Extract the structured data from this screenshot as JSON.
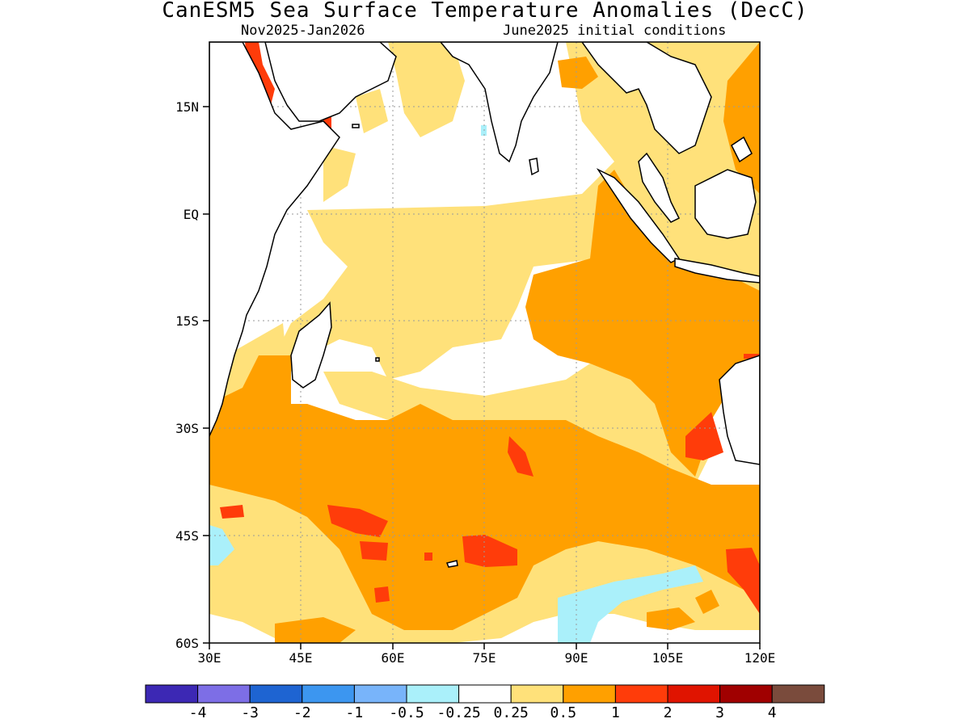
{
  "title": "CanESM5 Sea Surface Temperature Anomalies (DecC)",
  "subtitle_left": "Nov2025-Jan2026",
  "subtitle_right": "June2025 initial conditions",
  "lat_ticks": [
    "15N",
    "EQ",
    "15S",
    "30S",
    "45S",
    "60S"
  ],
  "lon_ticks": [
    "30E",
    "45E",
    "60E",
    "75E",
    "90E",
    "105E",
    "120E"
  ],
  "colors": {
    "ocean_neutral": "#ffffff",
    "pos_025_05": "#ffe17a",
    "pos_05_1": "#ffa000",
    "pos_1_2": "#ff3c0a",
    "pos_2_3": "#e01400",
    "neg_025_05": "#aaf0fa",
    "neg_05_1": "#78b4fa",
    "coast": "#000000",
    "grid": "#9a9a9a"
  },
  "colorbar": {
    "colors": [
      "#3c28b4",
      "#7d6ee6",
      "#1e64d2",
      "#3c96f0",
      "#78b4fa",
      "#aaf0fa",
      "#ffffff",
      "#ffe17a",
      "#ffa000",
      "#ff3c0a",
      "#e01400",
      "#a00000",
      "#7a4b3c"
    ],
    "labels": [
      "-4",
      "-3",
      "-2",
      "-1",
      "-0.5",
      "-0.25",
      "0.25",
      "0.5",
      "1",
      "2",
      "3",
      "4"
    ]
  }
}
